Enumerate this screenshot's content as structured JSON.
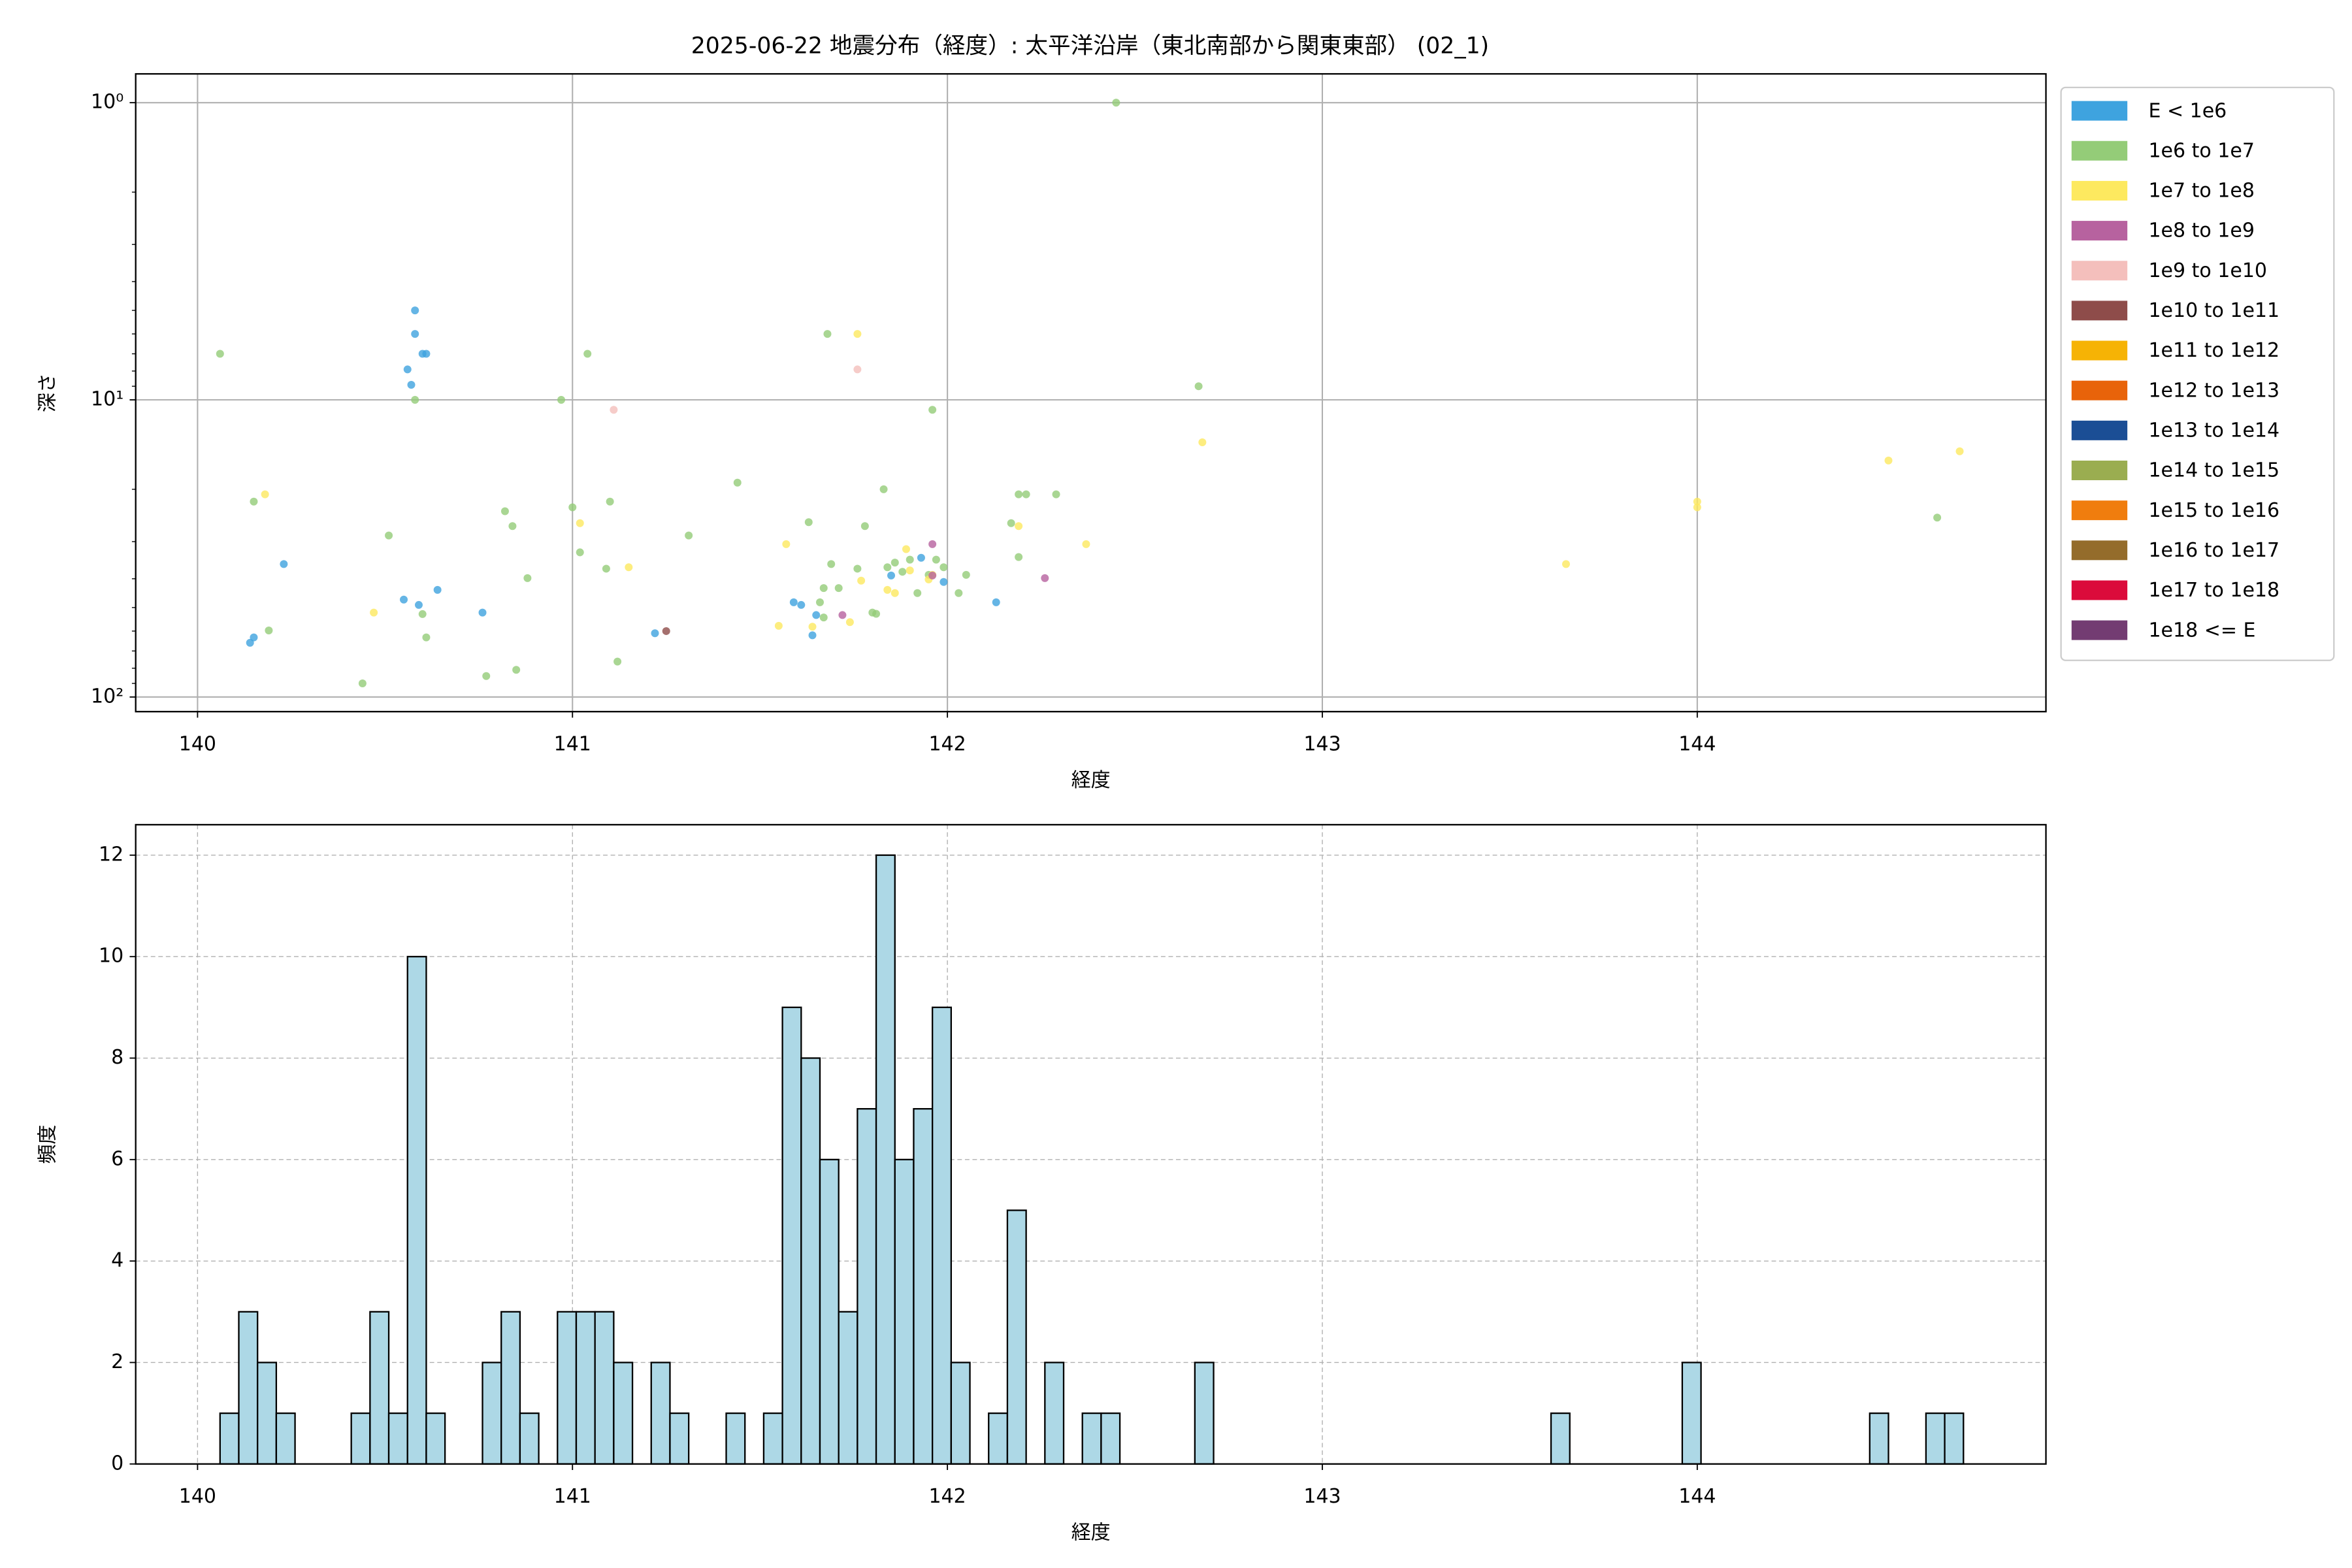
{
  "chart_data": [
    {
      "type": "scatter",
      "title": "2025-06-22 地震分布（経度）: 太平洋沿岸（東北南部から関東東部） (02_1)",
      "xlabel": "経度",
      "ylabel": "深さ",
      "xlim": [
        139.835,
        144.93
      ],
      "xticks": [
        140,
        141,
        142,
        143,
        144
      ],
      "yscale": "log",
      "ylim": [
        112,
        0.8
      ],
      "yticks": [
        {
          "value": 1,
          "label": "10⁰"
        },
        {
          "value": 10,
          "label": "10¹"
        },
        {
          "value": 100,
          "label": "10²"
        }
      ],
      "yminorticks": [
        2,
        3,
        4,
        5,
        6,
        7,
        8,
        9,
        20,
        30,
        40,
        50,
        60,
        70,
        80,
        90
      ],
      "grid": true,
      "grid_linestyle": "solid",
      "legend": "outside right",
      "series": [
        {
          "name": "E < 1e6",
          "color": "#3ea3df",
          "x": [
            140.58,
            140.58,
            140.6,
            140.61,
            140.56,
            140.57,
            140.23,
            140.14,
            140.15,
            140.55,
            140.59,
            140.64,
            140.76,
            141.22,
            141.59,
            141.61,
            141.65,
            141.64,
            141.85,
            141.93,
            141.99,
            142.13
          ],
          "values": [
            5.0,
            6.0,
            7.0,
            7.0,
            7.9,
            8.9,
            35.7,
            65.7,
            63,
            47,
            49,
            43.6,
            52,
            61,
            48,
            49,
            53,
            62,
            39,
            34,
            41,
            48
          ]
        },
        {
          "name": "1e6 to 1e7",
          "color": "#94cc78",
          "x": [
            142.45,
            140.06,
            141.04,
            141.68,
            140.58,
            140.97,
            142.67,
            141.96,
            140.15,
            140.51,
            140.82,
            140.84,
            141.0,
            141.1,
            141.02,
            141.09,
            140.88,
            141.31,
            141.44,
            141.63,
            141.83,
            141.78,
            141.69,
            141.67,
            141.71,
            141.76,
            141.66,
            141.67,
            141.8,
            141.81,
            141.84,
            141.86,
            141.88,
            141.9,
            141.92,
            141.95,
            141.97,
            141.99,
            142.05,
            142.03,
            142.17,
            142.19,
            142.21,
            142.29,
            142.19,
            140.6,
            140.19,
            140.61,
            141.12,
            140.85,
            140.77,
            140.44,
            144.64
          ],
          "values": [
            1.0,
            7.0,
            7.0,
            6.0,
            10,
            10,
            9.0,
            10.8,
            22,
            28.6,
            23.7,
            26.6,
            23,
            22,
            32.6,
            37,
            39.8,
            28.6,
            19,
            25.8,
            20,
            26.6,
            35.7,
            43,
            43,
            37,
            48,
            54,
            52,
            52.5,
            36.6,
            35.3,
            37.9,
            34.5,
            44.7,
            38.8,
            34.5,
            36.6,
            38.8,
            44.7,
            26,
            20.8,
            20.8,
            20.8,
            33.8,
            52.6,
            59.7,
            63,
            76,
            81,
            85,
            90,
            24.9
          ]
        },
        {
          "name": "1e7 to 1e8",
          "color": "#fde95f",
          "x": [
            141.76,
            140.18,
            141.02,
            141.15,
            140.47,
            141.57,
            141.55,
            141.64,
            141.74,
            141.77,
            141.89,
            141.9,
            141.84,
            141.86,
            141.95,
            141.96,
            142.19,
            142.37,
            142.68,
            143.65,
            144.0,
            144.0,
            144.51,
            144.7
          ],
          "values": [
            6.0,
            20.8,
            26,
            36.6,
            52,
            30.6,
            57.6,
            58,
            56,
            40.6,
            31.8,
            37.5,
            43.6,
            44.7,
            40.2,
            38.8,
            26.6,
            30.6,
            13.9,
            35.7,
            22,
            23,
            16,
            14.9
          ]
        },
        {
          "name": "1e8 to 1e9",
          "color": "#b7629f",
          "x": [
            141.96,
            142.26,
            141.72,
            141.96
          ],
          "values": [
            30.6,
            39.8,
            53,
            39
          ]
        },
        {
          "name": "1e9 to 1e10",
          "color": "#f4bfbc",
          "x": [
            141.76,
            141.11
          ],
          "values": [
            7.9,
            10.8
          ]
        },
        {
          "name": "1e10 to 1e11",
          "color": "#8e4c4a",
          "x": [
            141.25
          ],
          "values": [
            60
          ]
        },
        {
          "name": "1e11 to 1e12",
          "color": "#f6b305",
          "x": [],
          "values": []
        },
        {
          "name": "1e12 to 1e13",
          "color": "#e8630a",
          "x": [],
          "values": []
        },
        {
          "name": "1e13 to 1e14",
          "color": "#1b4e95",
          "x": [],
          "values": []
        },
        {
          "name": "1e14 to 1e15",
          "color": "#9aad50",
          "x": [],
          "values": []
        },
        {
          "name": "1e15 to 1e16",
          "color": "#f07d0e",
          "x": [],
          "values": []
        },
        {
          "name": "1e16 to 1e17",
          "color": "#946c2b",
          "x": [],
          "values": []
        },
        {
          "name": "1e17 to 1e18",
          "color": "#db0b3b",
          "x": [],
          "values": []
        },
        {
          "name": "1e18 <= E",
          "color": "#733c72",
          "x": [],
          "values": []
        }
      ]
    },
    {
      "type": "histogram",
      "xlabel": "経度",
      "ylabel": "頻度",
      "xlim": [
        139.835,
        144.93
      ],
      "xticks": [
        140,
        141,
        142,
        143,
        144
      ],
      "ylim": [
        0,
        12.6
      ],
      "yticks": [
        0,
        2,
        4,
        6,
        8,
        10,
        12
      ],
      "grid": true,
      "grid_linestyle": "dashed",
      "color": "#add8e6",
      "bins": [
        140.06,
        140.11,
        140.16,
        140.21,
        140.26,
        140.31,
        140.36,
        140.41,
        140.46,
        140.51,
        140.56,
        140.61,
        140.66,
        140.71,
        140.76,
        140.81,
        140.86,
        140.91,
        140.96,
        141.01,
        141.06,
        141.11,
        141.16,
        141.21,
        141.26,
        141.31,
        141.36,
        141.41,
        141.46,
        141.51,
        141.56,
        141.61,
        141.66,
        141.71,
        141.76,
        141.81,
        141.86,
        141.91,
        141.96,
        142.01,
        142.06,
        142.11,
        142.16,
        142.21,
        142.26,
        142.31,
        142.36,
        142.41,
        142.46,
        142.51,
        142.56,
        142.61,
        142.66,
        142.71,
        142.76,
        142.81,
        142.86,
        142.91,
        142.96,
        143.01,
        143.06,
        143.11,
        143.16,
        143.21,
        143.26,
        143.31,
        143.36,
        143.41,
        143.46,
        143.51,
        143.56,
        143.61,
        143.66,
        143.71,
        143.76,
        143.81,
        143.86,
        143.91,
        143.96,
        144.01,
        144.06,
        144.11,
        144.16,
        144.21,
        144.26,
        144.31,
        144.36,
        144.41,
        144.46,
        144.51,
        144.56,
        144.61,
        144.66,
        144.71
      ],
      "values": [
        1,
        3,
        2,
        1,
        0,
        0,
        0,
        1,
        3,
        1,
        10,
        1,
        0,
        0,
        2,
        3,
        1,
        0,
        3,
        3,
        3,
        2,
        0,
        2,
        1,
        0,
        0,
        1,
        0,
        1,
        9,
        8,
        6,
        3,
        7,
        12,
        6,
        7,
        9,
        2,
        0,
        1,
        5,
        0,
        2,
        0,
        1,
        1,
        0,
        0,
        0,
        0,
        2,
        0,
        0,
        0,
        0,
        0,
        0,
        0,
        0,
        0,
        0,
        0,
        0,
        0,
        0,
        0,
        0,
        0,
        0,
        1,
        0,
        0,
        0,
        0,
        0,
        0,
        2,
        0,
        0,
        0,
        0,
        0,
        0,
        0,
        0,
        0,
        1,
        0,
        0,
        1,
        1
      ]
    }
  ]
}
